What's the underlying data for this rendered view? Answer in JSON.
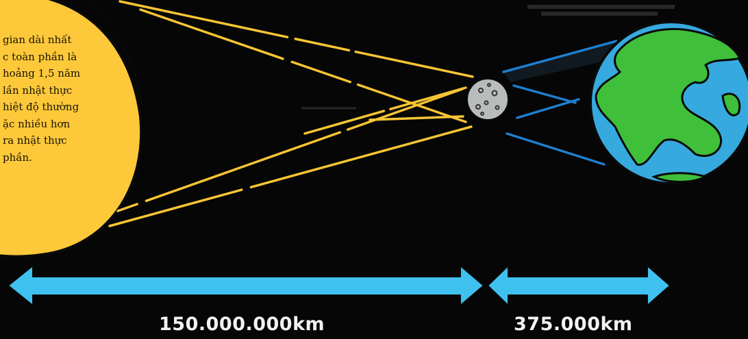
{
  "sun_text": [
    "gian dài nhất",
    "c toàn phần là",
    "hoảng 1,5 năm",
    "lần nhật thực",
    "hiệt độ thường",
    "ặc nhiều hơn",
    "ra nhật thực",
    "phần."
  ],
  "distances": {
    "sun_to_earth": "150.000.000km",
    "moon_to_earth": "375.000km"
  },
  "colors": {
    "background": "#060606",
    "sun": "#fdc93a",
    "sun_rays": "#f7c534",
    "moon": "#b9bcbc",
    "earth_ocean": "#36a9df",
    "earth_land": "#3fbf3a",
    "shadow_lines": "#1e7fd0",
    "arrows": "#3fc1ef"
  }
}
